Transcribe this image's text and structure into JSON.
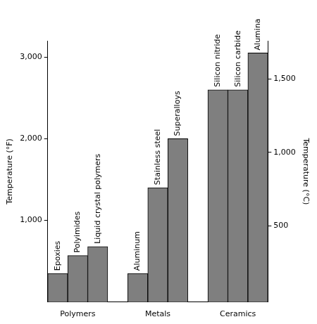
{
  "chart_data": {
    "type": "bar",
    "y_label": "Temperature (°F)",
    "y2_label": "Temperature (°C)",
    "groups": [
      {
        "name": "Polymers",
        "categories": [
          "Epoxies",
          "Polyimides",
          "Liquid crystal polymers"
        ],
        "values": [
          350,
          570,
          680
        ]
      },
      {
        "name": "Metals",
        "categories": [
          "Aluminum",
          "Stainless steel",
          "Superalloys"
        ],
        "values": [
          350,
          1400,
          2000
        ]
      },
      {
        "name": "Ceramics",
        "categories": [
          "Silicon nitride",
          "Silicon carbide",
          "Alumina"
        ],
        "values": [
          2600,
          2600,
          3050
        ]
      }
    ],
    "color": "#7f7f7f",
    "ylim": [
      0,
      3200
    ],
    "yticks": [
      {
        "value": 1000,
        "label": "1,000"
      },
      {
        "value": 2000,
        "label": "2,000"
      },
      {
        "value": 3000,
        "label": "3,000"
      }
    ],
    "y2lim": [
      -17.8,
      1760
    ],
    "y2ticks": [
      500,
      {
        "value": 1000,
        "label": "1,000"
      },
      {
        "value": 1500,
        "label": "1,500"
      }
    ],
    "grid": false
  }
}
